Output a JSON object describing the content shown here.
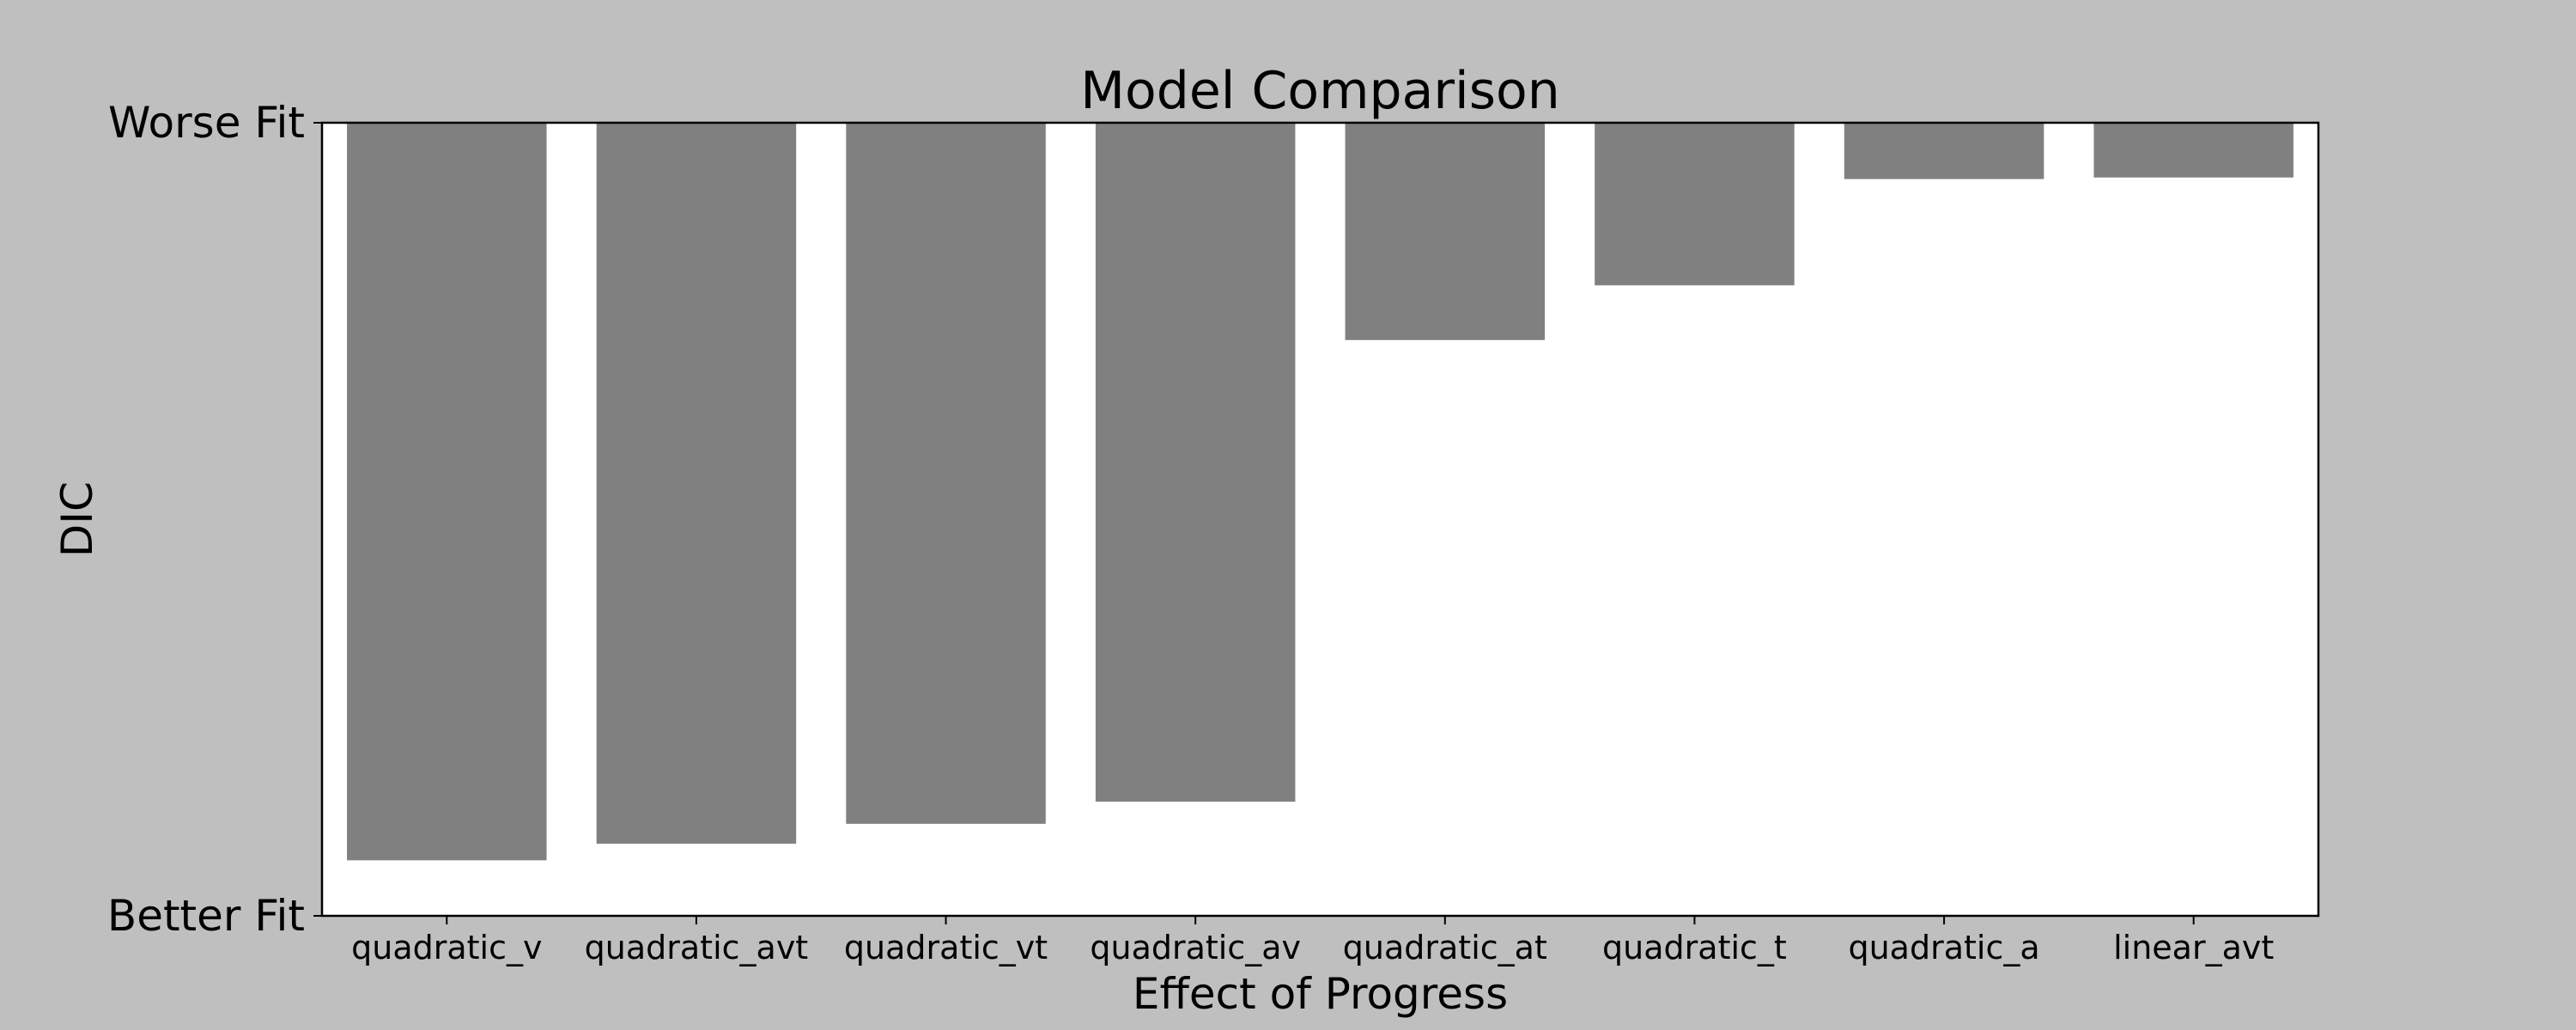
{
  "chart_data": {
    "type": "bar",
    "title": "Model Comparison",
    "xlabel": "Effect of Progress",
    "ylabel": "DIC",
    "categories": [
      "quadratic_v",
      "quadratic_avt",
      "quadratic_vt",
      "quadratic_av",
      "quadratic_at",
      "quadratic_t",
      "quadratic_a",
      "linear_avt"
    ],
    "values": [
      0.93,
      0.909,
      0.884,
      0.856,
      0.274,
      0.205,
      0.071,
      0.069
    ],
    "yticks": [
      "Worse Fit",
      "Better Fit"
    ],
    "ylim": [
      0,
      1
    ],
    "y_inverted": true,
    "bar_color": "#808080",
    "plot_background": "#ffffff",
    "figure_background": "#bfbfbf",
    "grid": false,
    "legend": "none"
  }
}
